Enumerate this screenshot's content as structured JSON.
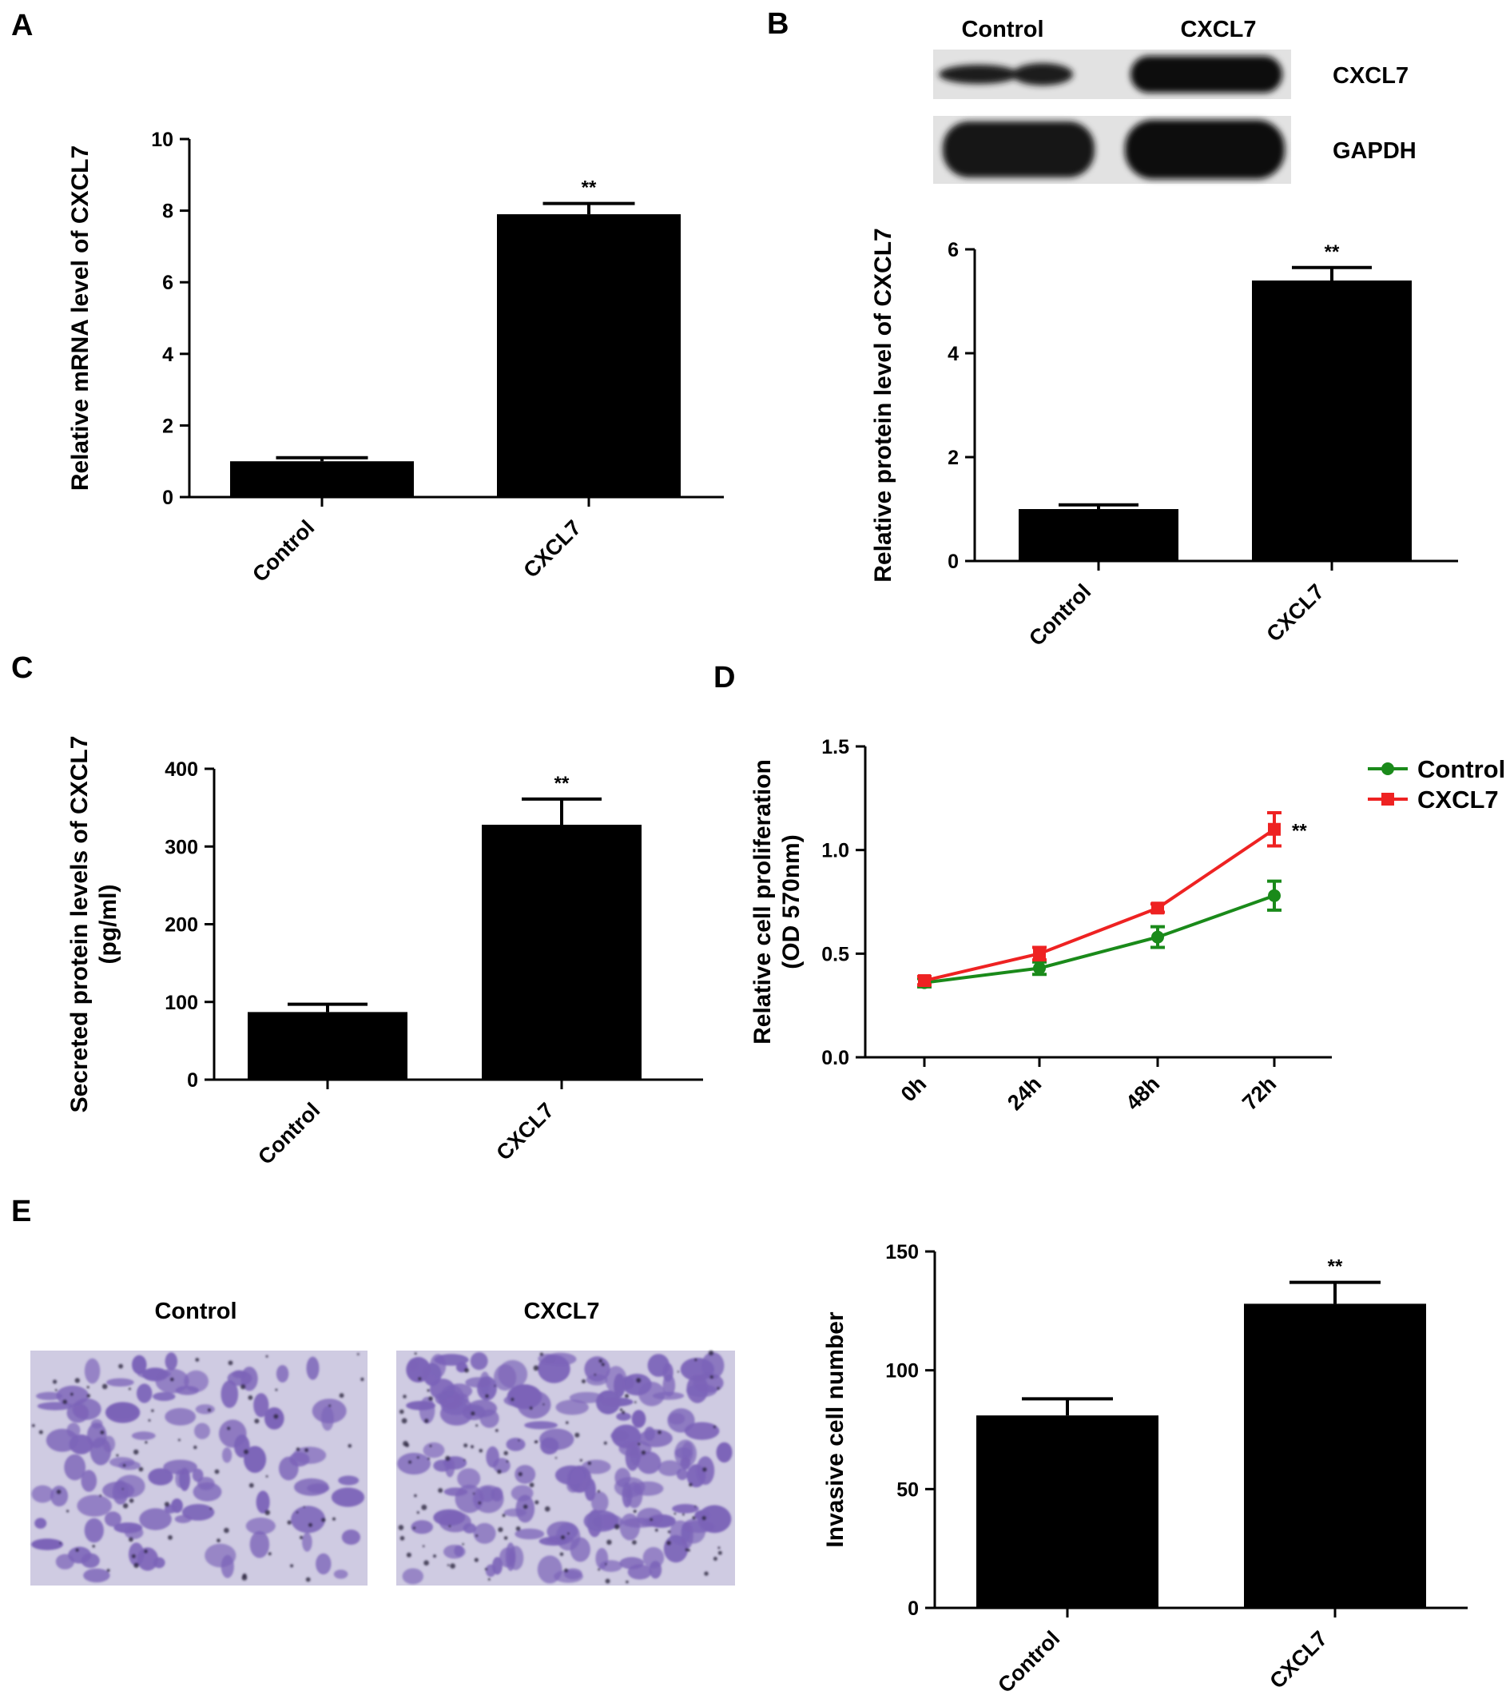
{
  "panels": {
    "A": "A",
    "B": "B",
    "C": "C",
    "D": "D",
    "E": "E"
  },
  "blot": {
    "lanes": [
      "Control",
      "CXCL7"
    ],
    "bands": [
      "CXCL7",
      "GAPDH"
    ]
  },
  "micrographs": {
    "labels": [
      "Control",
      "CXCL7"
    ],
    "stain_color": "#7b63b8",
    "background_color": "#cfcbe2"
  },
  "colors": {
    "bar": "#000000",
    "control_line": "#1a8a1a",
    "cxcl7_line": "#ee2222"
  },
  "chart_data": [
    {
      "id": "A",
      "type": "bar",
      "categories": [
        "Control",
        "CXCL7"
      ],
      "values": [
        1.0,
        7.9
      ],
      "errors": [
        0.1,
        0.3
      ],
      "significance": [
        "",
        "**"
      ],
      "ylabel": "Relative mRNA level of CXCL7",
      "ylim": [
        0,
        10
      ],
      "yticks": [
        0,
        2,
        4,
        6,
        8,
        10
      ]
    },
    {
      "id": "B",
      "type": "bar",
      "categories": [
        "Control",
        "CXCL7"
      ],
      "values": [
        1.0,
        5.4
      ],
      "errors": [
        0.08,
        0.25
      ],
      "significance": [
        "",
        "**"
      ],
      "ylabel": "Relative protein level of CXCL7",
      "ylim": [
        0,
        6
      ],
      "yticks": [
        0,
        2,
        4,
        6
      ]
    },
    {
      "id": "C",
      "type": "bar",
      "categories": [
        "Control",
        "CXCL7"
      ],
      "values": [
        87,
        328
      ],
      "errors": [
        10,
        33
      ],
      "significance": [
        "",
        "**"
      ],
      "ylabel": [
        "Secreted protein levels of CXCL7",
        "(pg/ml)"
      ],
      "ylim": [
        0,
        400
      ],
      "yticks": [
        0,
        100,
        200,
        300,
        400
      ]
    },
    {
      "id": "D",
      "type": "line",
      "x": [
        "0h",
        "24h",
        "48h",
        "72h"
      ],
      "series": [
        {
          "name": "Control",
          "values": [
            0.36,
            0.43,
            0.58,
            0.78
          ],
          "errors": [
            0.02,
            0.03,
            0.05,
            0.07
          ],
          "marker": "circle"
        },
        {
          "name": "CXCL7",
          "values": [
            0.37,
            0.5,
            0.72,
            1.1
          ],
          "errors": [
            0.02,
            0.03,
            0.02,
            0.08
          ],
          "marker": "square"
        }
      ],
      "significance_label": "**",
      "ylabel": [
        "Relative cell proliferation",
        "(OD 570nm)"
      ],
      "ylim": [
        0,
        1.5
      ],
      "yticks": [
        "0.0",
        "0.5",
        "1.0",
        "1.5"
      ],
      "legend": "top-right"
    },
    {
      "id": "E",
      "type": "bar",
      "categories": [
        "Control",
        "CXCL7"
      ],
      "values": [
        81,
        128
      ],
      "errors": [
        7,
        9
      ],
      "significance": [
        "",
        "**"
      ],
      "ylabel": "Invasive cell number",
      "ylim": [
        0,
        150
      ],
      "yticks": [
        0,
        50,
        100,
        150
      ]
    }
  ]
}
